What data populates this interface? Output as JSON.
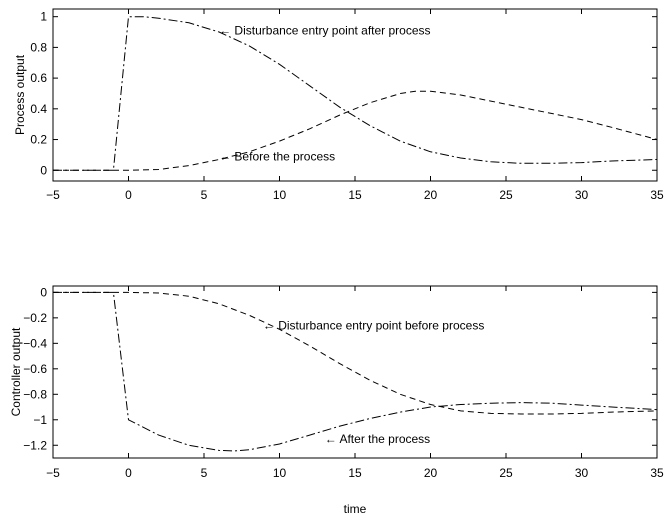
{
  "chart_data": [
    {
      "type": "line",
      "title": "",
      "xlabel": "",
      "ylabel": "Process output",
      "xlim": [
        -5,
        35
      ],
      "ylim": [
        -0.07,
        1.05
      ],
      "xticks": [
        -5,
        0,
        5,
        10,
        15,
        20,
        25,
        30,
        35
      ],
      "xtick_labels": [
        "−5",
        "0",
        "5",
        "10",
        "15",
        "20",
        "25",
        "30",
        "35"
      ],
      "yticks": [
        0,
        0.2,
        0.4,
        0.6,
        0.8,
        1
      ],
      "ytick_labels": [
        "0",
        "0.2",
        "0.4",
        "0.6",
        "0.8",
        "1"
      ],
      "grid": false,
      "series": [
        {
          "style": "dashdot",
          "points": [
            [
              -5,
              0
            ],
            [
              -1,
              0
            ],
            [
              0,
              1
            ],
            [
              1,
              1
            ],
            [
              2,
              0.99
            ],
            [
              4,
              0.96
            ],
            [
              6,
              0.9
            ],
            [
              8,
              0.81
            ],
            [
              10,
              0.69
            ],
            [
              12,
              0.55
            ],
            [
              14,
              0.41
            ],
            [
              16,
              0.29
            ],
            [
              18,
              0.19
            ],
            [
              20,
              0.12
            ],
            [
              22,
              0.08
            ],
            [
              24,
              0.055
            ],
            [
              26,
              0.045
            ],
            [
              28,
              0.045
            ],
            [
              30,
              0.05
            ],
            [
              32,
              0.06
            ],
            [
              35,
              0.07
            ]
          ]
        },
        {
          "style": "dashed",
          "points": [
            [
              -5,
              0
            ],
            [
              0,
              0
            ],
            [
              2,
              0.005
            ],
            [
              4,
              0.03
            ],
            [
              6,
              0.07
            ],
            [
              8,
              0.12
            ],
            [
              10,
              0.19
            ],
            [
              12,
              0.27
            ],
            [
              14,
              0.36
            ],
            [
              16,
              0.44
            ],
            [
              18,
              0.5
            ],
            [
              19,
              0.515
            ],
            [
              20,
              0.515
            ],
            [
              22,
              0.49
            ],
            [
              24,
              0.45
            ],
            [
              26,
              0.41
            ],
            [
              28,
              0.37
            ],
            [
              30,
              0.33
            ],
            [
              32,
              0.28
            ],
            [
              35,
              0.2
            ]
          ]
        }
      ],
      "annotations": [
        {
          "text": "← Disturbance entry point after process",
          "x": 6,
          "y": 0.91
        },
        {
          "text": "← Before the process",
          "x": 6,
          "y": 0.09
        }
      ]
    },
    {
      "type": "line",
      "title": "",
      "xlabel": "time",
      "ylabel": "Controller output",
      "xlim": [
        -5,
        35
      ],
      "ylim": [
        -1.3,
        0.05
      ],
      "xticks": [
        -5,
        0,
        5,
        10,
        15,
        20,
        25,
        30,
        35
      ],
      "xtick_labels": [
        "−5",
        "0",
        "5",
        "10",
        "15",
        "20",
        "25",
        "30",
        "35"
      ],
      "yticks": [
        0,
        -0.2,
        -0.4,
        -0.6,
        -0.8,
        -1,
        -1.2
      ],
      "ytick_labels": [
        "0",
        "−0.2",
        "−0.4",
        "−0.6",
        "−0.8",
        "−1",
        "−1.2"
      ],
      "grid": false,
      "series": [
        {
          "style": "dashdot",
          "points": [
            [
              -5,
              0
            ],
            [
              -1,
              0
            ],
            [
              0,
              -1
            ],
            [
              2,
              -1.12
            ],
            [
              4,
              -1.2
            ],
            [
              6,
              -1.24
            ],
            [
              7,
              -1.245
            ],
            [
              8,
              -1.235
            ],
            [
              10,
              -1.19
            ],
            [
              12,
              -1.12
            ],
            [
              14,
              -1.05
            ],
            [
              16,
              -0.99
            ],
            [
              18,
              -0.94
            ],
            [
              20,
              -0.9
            ],
            [
              22,
              -0.88
            ],
            [
              24,
              -0.87
            ],
            [
              26,
              -0.865
            ],
            [
              28,
              -0.87
            ],
            [
              30,
              -0.885
            ],
            [
              32,
              -0.9
            ],
            [
              35,
              -0.92
            ]
          ]
        },
        {
          "style": "dashed",
          "points": [
            [
              -5,
              0
            ],
            [
              0,
              0
            ],
            [
              2,
              -0.005
            ],
            [
              4,
              -0.03
            ],
            [
              6,
              -0.09
            ],
            [
              8,
              -0.18
            ],
            [
              10,
              -0.29
            ],
            [
              12,
              -0.42
            ],
            [
              14,
              -0.56
            ],
            [
              16,
              -0.69
            ],
            [
              18,
              -0.8
            ],
            [
              20,
              -0.88
            ],
            [
              22,
              -0.93
            ],
            [
              24,
              -0.95
            ],
            [
              26,
              -0.955
            ],
            [
              28,
              -0.955
            ],
            [
              30,
              -0.95
            ],
            [
              32,
              -0.94
            ],
            [
              35,
              -0.93
            ]
          ]
        }
      ],
      "annotations": [
        {
          "text": "← Disturbance entry point before process",
          "x": 8.9,
          "y": -0.26
        },
        {
          "text": "← After the process",
          "x": 13,
          "y": -1.15
        }
      ]
    }
  ]
}
